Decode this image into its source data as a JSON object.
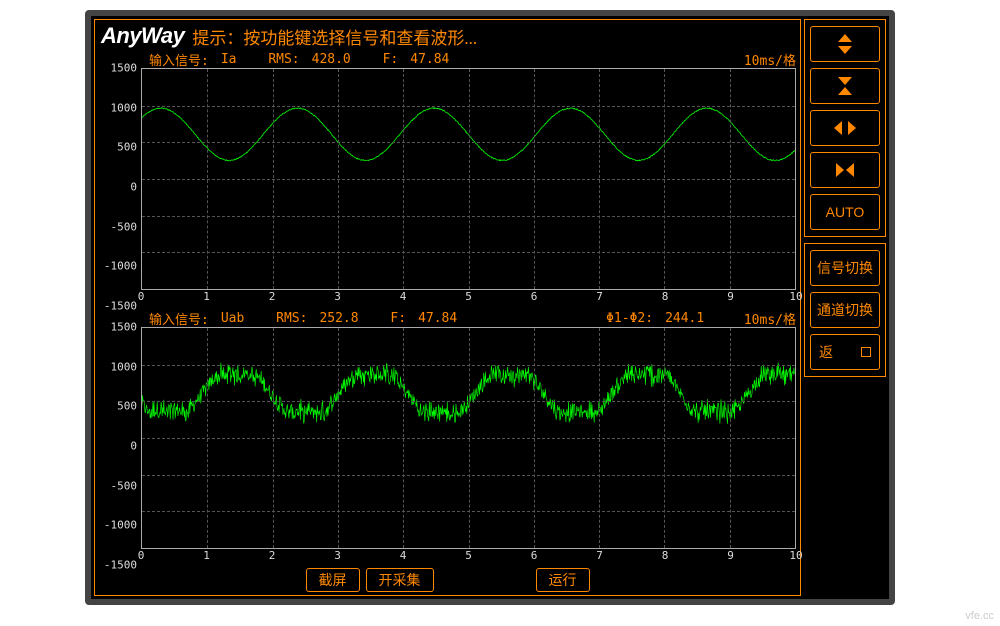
{
  "logo_text": "AnyWay",
  "hint_text": "提示：按功能键选择信号和查看波形...",
  "colors": {
    "accent": "#ff8800",
    "wave": "#00ff00",
    "bg": "#000000",
    "grid": "#555555",
    "axis_text": "#dddddd"
  },
  "chart1": {
    "signal_label": "输入信号:",
    "signal_name": "Ia",
    "rms_label": "RMS:",
    "rms_value": "428.0",
    "f_label": "F:",
    "f_value": "47.84",
    "timebase": "10ms/格",
    "ylim": [
      -1500,
      1500
    ],
    "ytick_step": 500,
    "xlim": [
      0,
      10
    ],
    "xtick_step": 1,
    "type": "sine",
    "amplitude": 600,
    "frequency_hz": 47.84,
    "div_ms": 10,
    "phase_deg": 40,
    "noise": 25,
    "wave_color": "#00ff00",
    "line_width": 1.2
  },
  "chart2": {
    "signal_label": "输入信号:",
    "signal_name": "Uab",
    "rms_label": "RMS:",
    "rms_value": "252.8",
    "f_label": "F:",
    "f_value": "47.84",
    "phase_label": "Φ1-Φ2:",
    "phase_value": "244.1",
    "timebase": "10ms/格",
    "ylim": [
      -1500,
      1500
    ],
    "ytick_step": 500,
    "xlim": [
      0,
      10
    ],
    "xtick_step": 1,
    "type": "pwm-noisy",
    "fundamental_hz": 47.84,
    "div_ms": 10,
    "env_amplitude": 550,
    "noise": 350,
    "wave_color": "#00ff00",
    "line_width": 1
  },
  "bottom_buttons": {
    "screenshot": "截屏",
    "start_collect": "开采集",
    "run": "运行"
  },
  "side_buttons": {
    "auto": "AUTO",
    "signal_switch": "信号切换",
    "channel_switch": "通道切换",
    "back": "返"
  },
  "watermark": "vfe.cc"
}
